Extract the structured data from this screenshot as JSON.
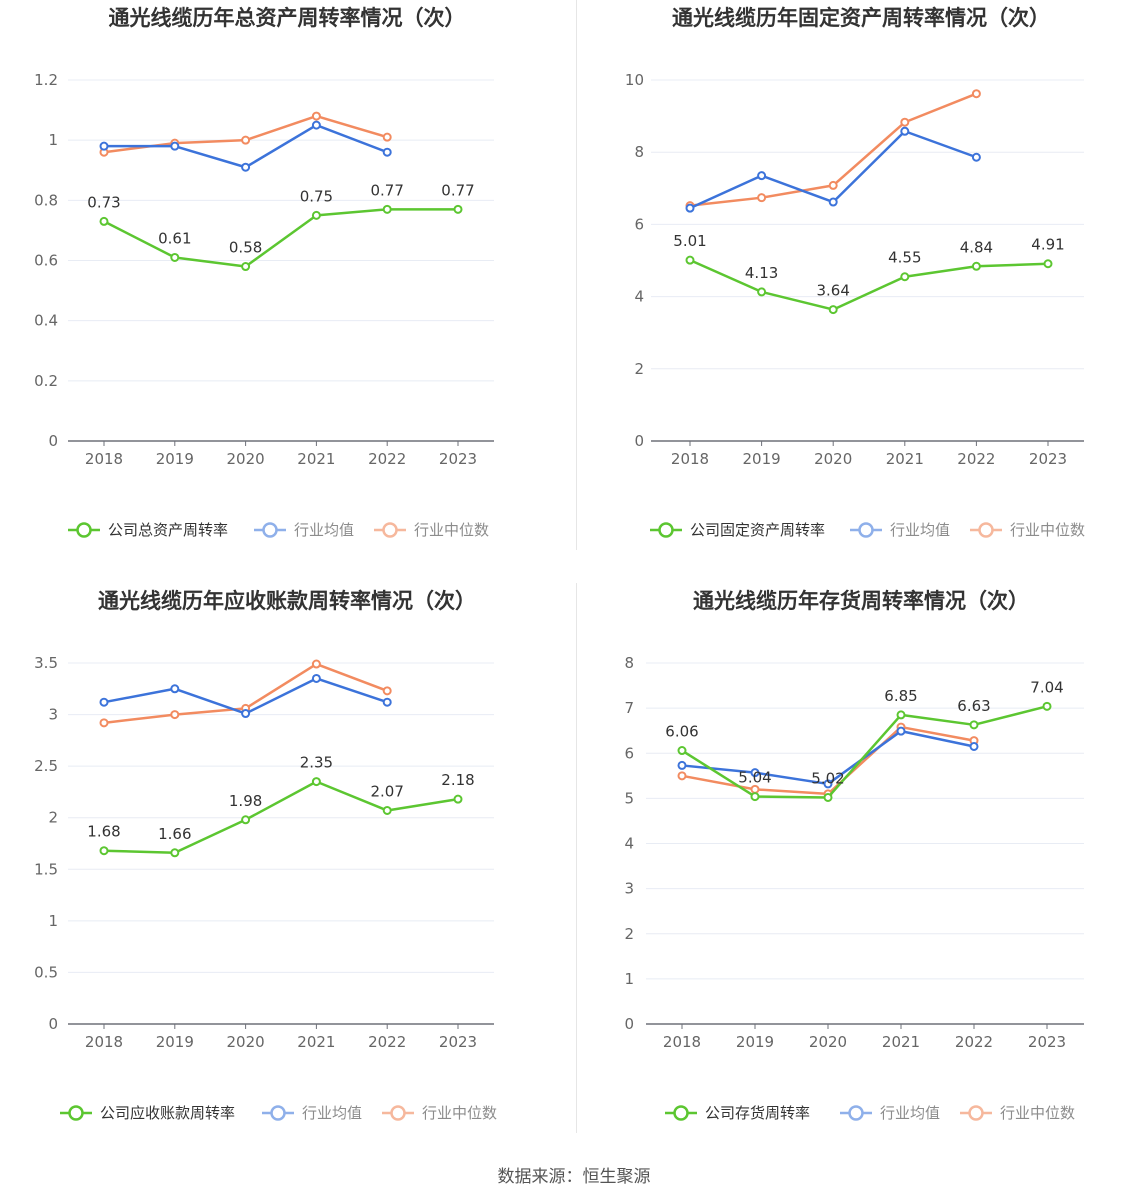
{
  "source_note": "数据来源：恒生聚源",
  "colors": {
    "company": "#5cc631",
    "avg": "#3c73da",
    "median": "#f28b60"
  },
  "chart_data": [
    {
      "type": "line",
      "title": "通光线缆历年总资产周转率情况（次）",
      "categories": [
        "2018",
        "2019",
        "2020",
        "2021",
        "2022",
        "2023"
      ],
      "ylim": [
        0,
        1.2
      ],
      "yticks": [
        0,
        0.2,
        0.4,
        0.6,
        0.8,
        1,
        1.2
      ],
      "ytick_labels": [
        "0",
        "0.2",
        "0.4",
        "0.6",
        "0.8",
        "1",
        "1.2"
      ],
      "grid": true,
      "legend_position": "bottom",
      "series": [
        {
          "name": "公司总资产周转率",
          "key": "company",
          "values": [
            0.73,
            0.61,
            0.58,
            0.75,
            0.77,
            0.77
          ],
          "labels": [
            "0.73",
            "0.61",
            "0.58",
            "0.75",
            "0.77",
            "0.77"
          ]
        },
        {
          "name": "行业均值",
          "key": "avg",
          "values": [
            0.98,
            0.98,
            0.91,
            1.05,
            0.96,
            null
          ]
        },
        {
          "name": "行业中位数",
          "key": "median",
          "values": [
            0.96,
            0.99,
            1.0,
            1.08,
            1.01,
            null
          ]
        }
      ]
    },
    {
      "type": "line",
      "title": "通光线缆历年固定资产周转率情况（次）",
      "categories": [
        "2018",
        "2019",
        "2020",
        "2021",
        "2022",
        "2023"
      ],
      "ylim": [
        0,
        10
      ],
      "yticks": [
        0,
        2,
        4,
        6,
        8,
        10
      ],
      "ytick_labels": [
        "0",
        "2",
        "4",
        "6",
        "8",
        "10"
      ],
      "grid": true,
      "legend_position": "bottom",
      "series": [
        {
          "name": "公司固定资产周转率",
          "key": "company",
          "values": [
            5.01,
            4.13,
            3.64,
            4.55,
            4.84,
            4.91
          ],
          "labels": [
            "5.01",
            "4.13",
            "3.64",
            "4.55",
            "4.84",
            "4.91"
          ]
        },
        {
          "name": "行业均值",
          "key": "avg",
          "values": [
            6.45,
            7.35,
            6.62,
            8.58,
            7.86,
            null
          ]
        },
        {
          "name": "行业中位数",
          "key": "median",
          "values": [
            6.52,
            6.74,
            7.08,
            8.83,
            9.62,
            null
          ]
        }
      ]
    },
    {
      "type": "line",
      "title": "通光线缆历年应收账款周转率情况（次）",
      "categories": [
        "2018",
        "2019",
        "2020",
        "2021",
        "2022",
        "2023"
      ],
      "ylim": [
        0,
        3.5
      ],
      "yticks": [
        0,
        0.5,
        1,
        1.5,
        2,
        2.5,
        3,
        3.5
      ],
      "ytick_labels": [
        "0",
        "0.5",
        "1",
        "1.5",
        "2",
        "2.5",
        "3",
        "3.5"
      ],
      "grid": true,
      "legend_position": "bottom",
      "series": [
        {
          "name": "公司应收账款周转率",
          "key": "company",
          "values": [
            1.68,
            1.66,
            1.98,
            2.35,
            2.07,
            2.18
          ],
          "labels": [
            "1.68",
            "1.66",
            "1.98",
            "2.35",
            "2.07",
            "2.18"
          ]
        },
        {
          "name": "行业均值",
          "key": "avg",
          "values": [
            3.12,
            3.25,
            3.01,
            3.35,
            3.12,
            null
          ]
        },
        {
          "name": "行业中位数",
          "key": "median",
          "values": [
            2.92,
            3.0,
            3.06,
            3.49,
            3.23,
            null
          ]
        }
      ]
    },
    {
      "type": "line",
      "title": "通光线缆历年存货周转率情况（次）",
      "categories": [
        "2018",
        "2019",
        "2020",
        "2021",
        "2022",
        "2023"
      ],
      "ylim": [
        0,
        8
      ],
      "yticks": [
        0,
        1,
        2,
        3,
        4,
        5,
        6,
        7,
        8
      ],
      "ytick_labels": [
        "0",
        "1",
        "2",
        "3",
        "4",
        "5",
        "6",
        "7",
        "8"
      ],
      "grid": true,
      "legend_position": "bottom",
      "series": [
        {
          "name": "公司存货周转率",
          "key": "company",
          "values": [
            6.06,
            5.04,
            5.02,
            6.85,
            6.63,
            7.04
          ],
          "labels": [
            "6.06",
            "5.04",
            "5.02",
            "6.85",
            "6.63",
            "7.04"
          ]
        },
        {
          "name": "行业均值",
          "key": "avg",
          "values": [
            5.73,
            5.57,
            5.32,
            6.49,
            6.15,
            null
          ]
        },
        {
          "name": "行业中位数",
          "key": "median",
          "values": [
            5.5,
            5.2,
            5.1,
            6.58,
            6.28,
            null
          ]
        }
      ]
    }
  ]
}
